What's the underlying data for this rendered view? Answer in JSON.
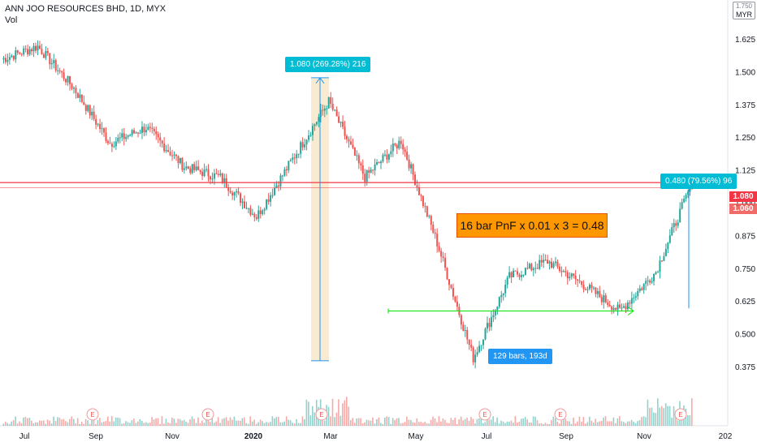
{
  "legend": {
    "symbol": "ANN JOO RESOURCES BHD, 1D, MYX",
    "volume_label": "Vol"
  },
  "currency": {
    "top": "1.750",
    "unit": "MYR"
  },
  "callouts": {
    "measure_1": "1.080 (269.28%) 216",
    "measure_2": "0.480 (79.56%) 96",
    "date_range": "129 bars, 193d"
  },
  "note_text": "16 bar PnF x 0.01 x 3 = 0.48",
  "price_tags": {
    "line_1": "1.080",
    "line_2": "1.060"
  },
  "earnings_marker": "E",
  "colors": {
    "up": "#26a69a",
    "down": "#ef5350",
    "hline": "#f23645",
    "measure": "#2196f3",
    "shade": "#f5deb3",
    "range_arrow": "#00e600",
    "callout": "#00bcd4",
    "note_bg": "#ff9800"
  },
  "chart_data": {
    "type": "candlestick",
    "title": "ANN JOO RESOURCES BHD, 1D, MYX",
    "ylabel": "MYR",
    "ylim": [
      0.33,
      1.76
    ],
    "y_ticks": [
      "1.750",
      "1.625",
      "1.500",
      "1.375",
      "1.250",
      "1.125",
      "1.000",
      "0.875",
      "0.750",
      "0.625",
      "0.500",
      "0.375"
    ],
    "x_ticks": [
      "Jul",
      "Sep",
      "Nov",
      "2020",
      "Mar",
      "May",
      "Jul",
      "Sep",
      "Nov",
      "202"
    ],
    "price_path": [
      {
        "month": "Jul 2019",
        "close": 1.55
      },
      {
        "month": "Jul 2019 peak",
        "close": 1.6
      },
      {
        "month": "Aug 2019",
        "close": 1.44
      },
      {
        "month": "Sep 2019",
        "close": 1.23
      },
      {
        "month": "Sep 2019",
        "close": 1.29
      },
      {
        "month": "Oct 2019",
        "close": 1.14
      },
      {
        "month": "Nov 2019",
        "close": 1.1
      },
      {
        "month": "Dec 2019",
        "close": 0.95
      },
      {
        "month": "Dec 2019",
        "close": 1.17
      },
      {
        "month": "Jan 2020",
        "close": 1.39
      },
      {
        "month": "Feb 2020",
        "close": 1.1
      },
      {
        "month": "Feb 2020",
        "close": 1.24
      },
      {
        "month": "Mar 2020",
        "close": 0.85
      },
      {
        "month": "Mar 2020 low",
        "close": 0.41
      },
      {
        "month": "Apr 2020",
        "close": 0.72
      },
      {
        "month": "Jun 2020",
        "close": 0.78
      },
      {
        "month": "Sep 2020",
        "close": 0.69
      },
      {
        "month": "Oct 2020",
        "close": 0.59
      },
      {
        "month": "Nov 2020",
        "close": 0.74
      },
      {
        "month": "Dec 2020",
        "close": 1.08
      }
    ],
    "horizontal_lines": [
      1.08,
      1.06
    ],
    "measures": [
      {
        "from": 0.4,
        "to": 1.48,
        "label": "1.080 (269.28%) 216"
      },
      {
        "from": 0.6,
        "to": 1.08,
        "label": "0.480 (79.56%) 96"
      }
    ],
    "date_range": {
      "y": 0.59,
      "label": "129 bars, 193d"
    },
    "earnings_count": 7,
    "grid": false
  }
}
